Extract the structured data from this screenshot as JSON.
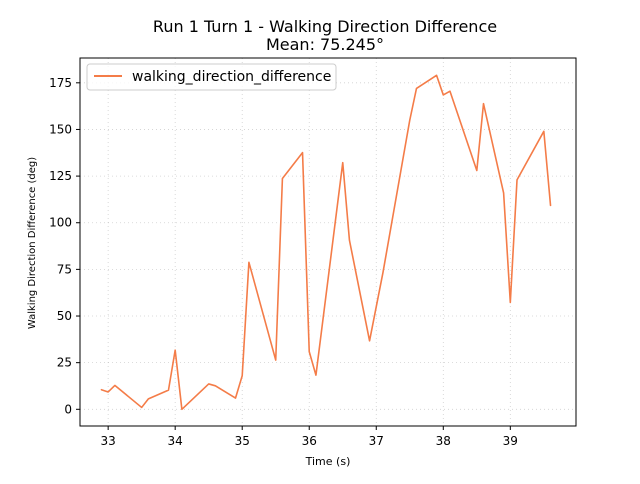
{
  "chart_data": {
    "type": "line",
    "title": "Run 1 Turn 1 - Walking Direction Difference",
    "subtitle": "Mean: 75.245°",
    "xlabel": "Time (s)",
    "ylabel": "Walking Direction Difference (deg)",
    "xlim": [
      32.58,
      39.98
    ],
    "ylim": [
      -8.95,
      188.3
    ],
    "xticks": [
      33,
      34,
      35,
      36,
      37,
      38,
      39
    ],
    "yticks": [
      0,
      25,
      50,
      75,
      100,
      125,
      150,
      175
    ],
    "grid": true,
    "legend_position": "top-left",
    "series": [
      {
        "name": "walking_direction_difference",
        "color": "#f47c48",
        "x": [
          32.9,
          33.0,
          33.1,
          33.5,
          33.6,
          33.9,
          34.0,
          34.1,
          34.5,
          34.6,
          34.9,
          35.0,
          35.1,
          35.5,
          35.6,
          35.9,
          36.0,
          36.1,
          36.5,
          36.6,
          36.9,
          37.0,
          37.1,
          37.5,
          37.6,
          37.9,
          38.0,
          38.1,
          38.5,
          38.6,
          38.9,
          39.0,
          39.1,
          39.5,
          39.6
        ],
        "y": [
          10.5,
          9.3,
          12.8,
          1.0,
          5.6,
          10.3,
          31.7,
          0.0,
          13.6,
          12.6,
          6.0,
          18.0,
          78.8,
          26.4,
          123.7,
          137.6,
          30.9,
          18.3,
          132.2,
          90.6,
          36.7,
          55.0,
          73.3,
          155.0,
          172.0,
          179.0,
          168.5,
          170.5,
          128.0,
          163.8,
          116.0,
          57.3,
          123.0,
          149.0,
          109.3
        ]
      }
    ]
  }
}
